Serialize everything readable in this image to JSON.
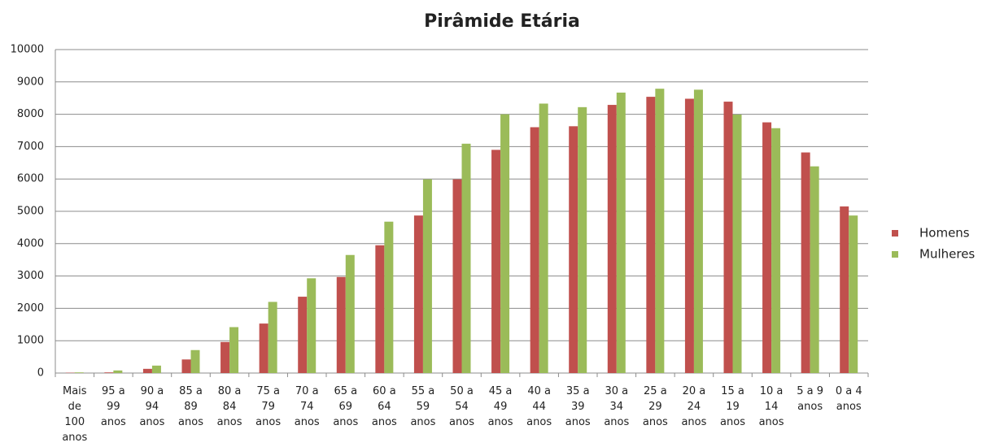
{
  "chart_data": {
    "type": "bar",
    "title": "Pirâmide Etária",
    "categories": [
      "Mais de 100 anos",
      "95 a 99 anos",
      "90 a 94 anos",
      "85 a 89 anos",
      "80 a 84 anos",
      "75 a 79 anos",
      "70 a 74 anos",
      "65 a 69 anos",
      "60 a 64 anos",
      "55 a 59 anos",
      "50 a 54 anos",
      "45 a 49 anos",
      "40 a 44 anos",
      "35 a 39 anos",
      "30 a 34 anos",
      "25 a 29 anos",
      "20 a 24 anos",
      "15 a 19 anos",
      "10 a 14 anos",
      "5 a 9 anos",
      "0 a 4 anos"
    ],
    "series": [
      {
        "name": "Homens",
        "color": "#c0504d",
        "values": [
          10,
          20,
          130,
          420,
          960,
          1530,
          2360,
          2970,
          3950,
          4870,
          5990,
          6900,
          7600,
          7630,
          8290,
          8540,
          8480,
          8390,
          7750,
          6820,
          5150
        ]
      },
      {
        "name": "Mulheres",
        "color": "#9bbb59",
        "values": [
          20,
          80,
          230,
          710,
          1420,
          2200,
          2930,
          3650,
          4680,
          5990,
          7090,
          8000,
          8330,
          8220,
          8670,
          8790,
          8760,
          7990,
          7570,
          6390,
          4870
        ]
      }
    ],
    "ylim": [
      0,
      10000
    ],
    "yticks": [
      0,
      1000,
      2000,
      3000,
      4000,
      5000,
      6000,
      7000,
      8000,
      9000,
      10000
    ],
    "grid": true,
    "legend": "right"
  }
}
